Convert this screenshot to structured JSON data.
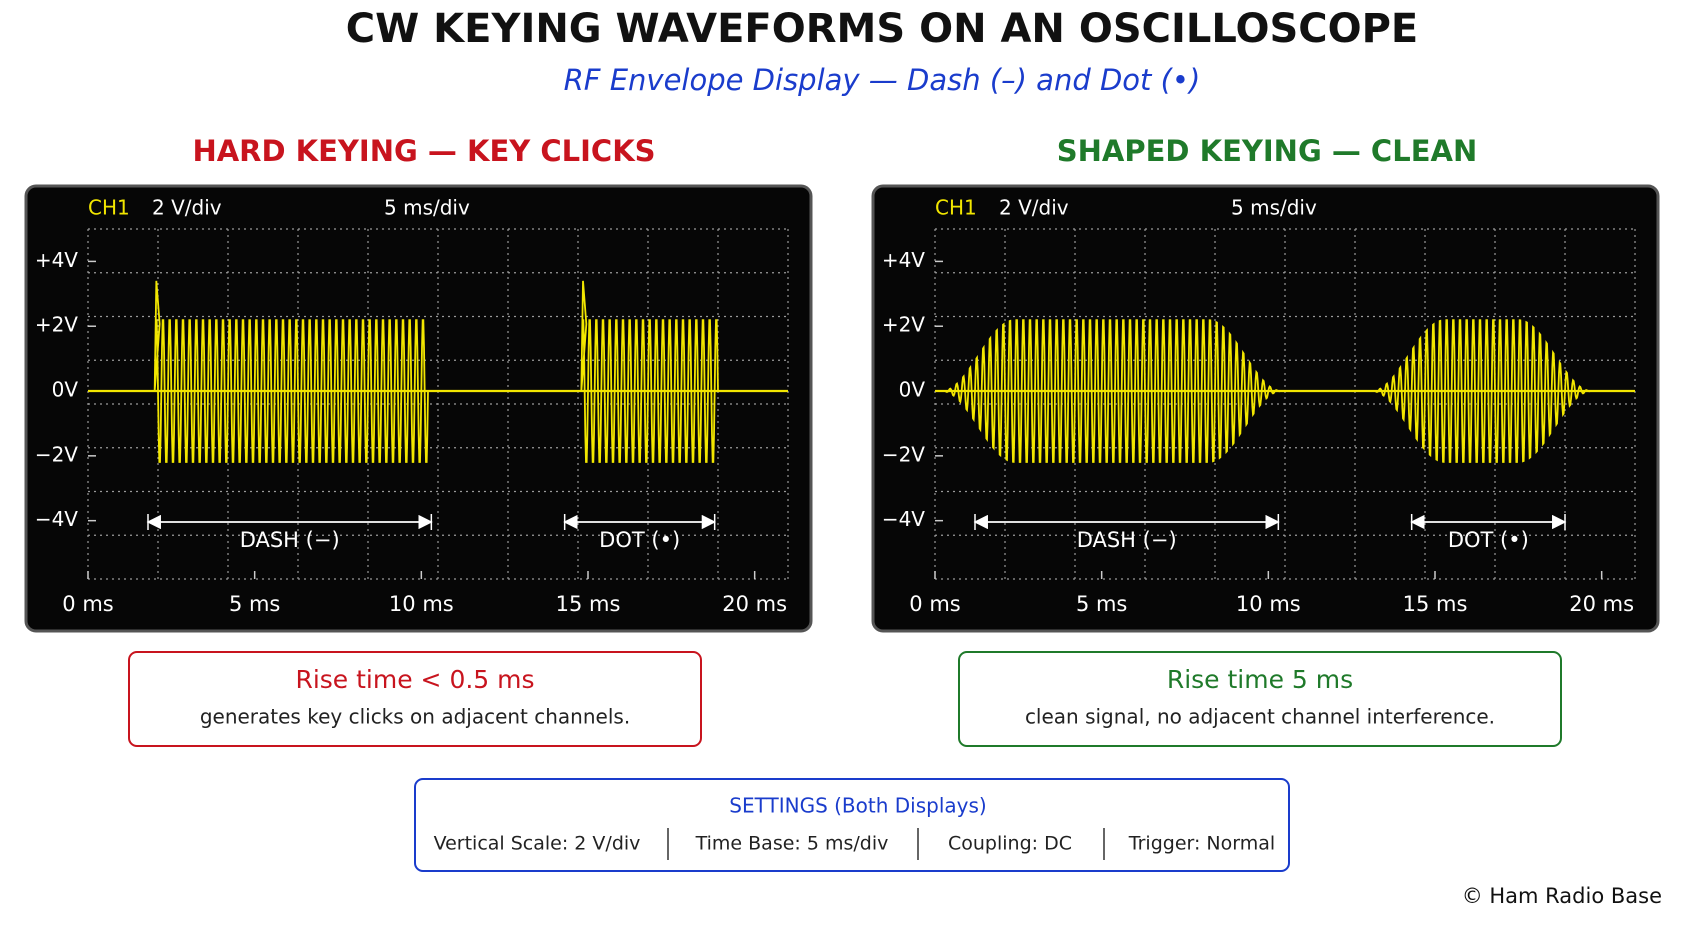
{
  "title": "CW KEYING WAVEFORMS ON AN OSCILLOSCOPE",
  "subtitle": "RF Envelope Display — Dash (–) and Dot (•)",
  "chart_data": [
    {
      "type": "envelope",
      "title": "HARD KEYING — KEY CLICKS",
      "title_color": "#c8141e",
      "channel": "CH1",
      "vertical_scale": "2 V/div",
      "time_base": "5 ms/div",
      "keying": "hard",
      "trace_color": "#f2e600",
      "xlim": [
        0,
        21
      ],
      "xticks": [
        {
          "value": 0,
          "label": "0 ms"
        },
        {
          "value": 5,
          "label": "5 ms"
        },
        {
          "value": 10,
          "label": "10 ms"
        },
        {
          "value": 15,
          "label": "15 ms"
        },
        {
          "value": 20,
          "label": "20 ms"
        }
      ],
      "ylim": [
        -5.8,
        5.0
      ],
      "yticks": [
        {
          "value": 4,
          "label": "+4V"
        },
        {
          "value": 2,
          "label": "+2V"
        },
        {
          "value": 0,
          "label": "0V"
        },
        {
          "value": -2,
          "label": "−2V"
        },
        {
          "value": -4,
          "label": "−4V"
        }
      ],
      "amplitude": 2.3,
      "overshoot": 3.4,
      "bursts": [
        {
          "start": 2.0,
          "end": 10.2
        },
        {
          "start": 14.8,
          "end": 18.9
        }
      ],
      "markers": [
        {
          "name": "DASH (−)",
          "start": 1.8,
          "end": 10.3
        },
        {
          "name": "DOT (•)",
          "start": 14.3,
          "end": 18.8
        }
      ]
    },
    {
      "type": "envelope",
      "title": "SHAPED KEYING — CLEAN",
      "title_color": "#1f7a2a",
      "channel": "CH1",
      "vertical_scale": "2 V/div",
      "time_base": "5 ms/div",
      "keying": "shaped",
      "trace_color": "#f2e600",
      "xlim": [
        0,
        21
      ],
      "xticks": [
        {
          "value": 0,
          "label": "0 ms"
        },
        {
          "value": 5,
          "label": "5 ms"
        },
        {
          "value": 10,
          "label": "10 ms"
        },
        {
          "value": 15,
          "label": "15 ms"
        },
        {
          "value": 20,
          "label": "20 ms"
        }
      ],
      "ylim": [
        -5.8,
        5.0
      ],
      "yticks": [
        {
          "value": 4,
          "label": "+4V"
        },
        {
          "value": 2,
          "label": "+2V"
        },
        {
          "value": 0,
          "label": "0V"
        },
        {
          "value": -2,
          "label": "−2V"
        },
        {
          "value": -4,
          "label": "−4V"
        }
      ],
      "amplitude": 2.3,
      "bursts": [
        {
          "start": 0.2,
          "end": 10.4
        },
        {
          "start": 13.1,
          "end": 19.7
        }
      ],
      "markers": [
        {
          "name": "DASH (−)",
          "start": 1.2,
          "end": 10.3
        },
        {
          "name": "DOT (•)",
          "start": 14.3,
          "end": 18.9
        }
      ]
    }
  ],
  "notes": [
    {
      "heading": "Rise time < 0.5 ms",
      "text": "generates key clicks on adjacent channels.",
      "color": "#c8141e"
    },
    {
      "heading": "Rise time 5 ms",
      "text": "clean signal, no adjacent channel interference.",
      "color": "#1f7a2a"
    }
  ],
  "settings": {
    "heading": "SETTINGS (Both Displays)",
    "items": [
      "Vertical Scale: 2 V/div",
      "Time Base: 5 ms/div",
      "Coupling: DC",
      "Trigger: Normal"
    ]
  },
  "footer": "© Ham Radio Base"
}
